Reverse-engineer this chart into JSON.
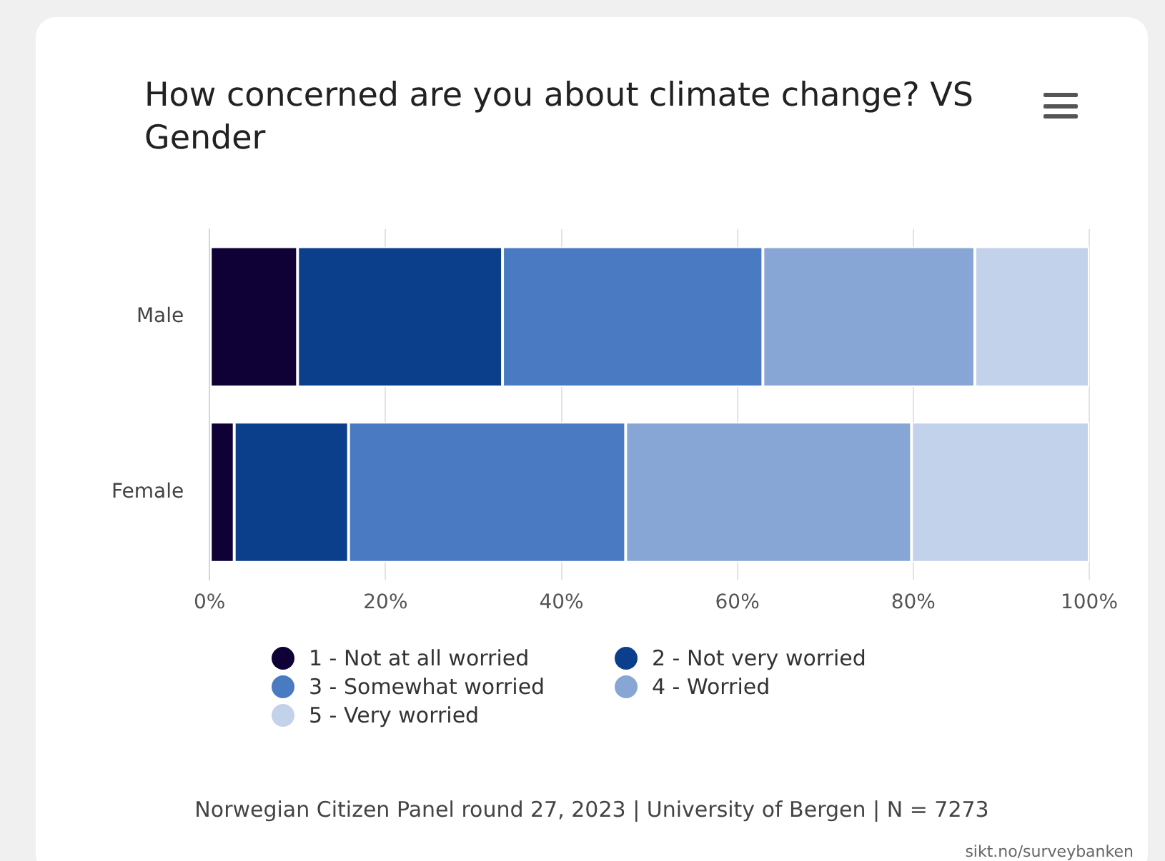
{
  "chart_data": {
    "type": "bar",
    "orientation": "horizontal",
    "stacked": true,
    "title": "How concerned are you about climate change? VS Gender",
    "categories": [
      "Male",
      "Female"
    ],
    "series": [
      {
        "name": "1 - Not at all worried",
        "color": "#0f0035",
        "values": [
          10.0,
          2.8
        ]
      },
      {
        "name": "2 - Not very worried",
        "color": "#0b3f8c",
        "values": [
          23.3,
          13.0
        ]
      },
      {
        "name": "3 - Somewhat worried",
        "color": "#4a7ac2",
        "values": [
          29.6,
          31.5
        ]
      },
      {
        "name": "4 - Worried",
        "color": "#87a6d6",
        "values": [
          24.1,
          32.5
        ]
      },
      {
        "name": "5 - Very worried",
        "color": "#c3d2eb",
        "values": [
          13.0,
          20.2
        ]
      }
    ],
    "xlim": [
      0,
      100
    ],
    "xticks": [
      {
        "value": 0,
        "label": "0%"
      },
      {
        "value": 20,
        "label": "20%"
      },
      {
        "value": 40,
        "label": "40%"
      },
      {
        "value": 60,
        "label": "60%"
      },
      {
        "value": 80,
        "label": "80%"
      },
      {
        "value": 100,
        "label": "100%"
      }
    ],
    "grid": "x",
    "legend": "bottom",
    "annotations": [
      "Norwegian Citizen Panel round 27, 2023 | University of Bergen | N = 7273",
      "sikt.no/surveybanken"
    ]
  }
}
